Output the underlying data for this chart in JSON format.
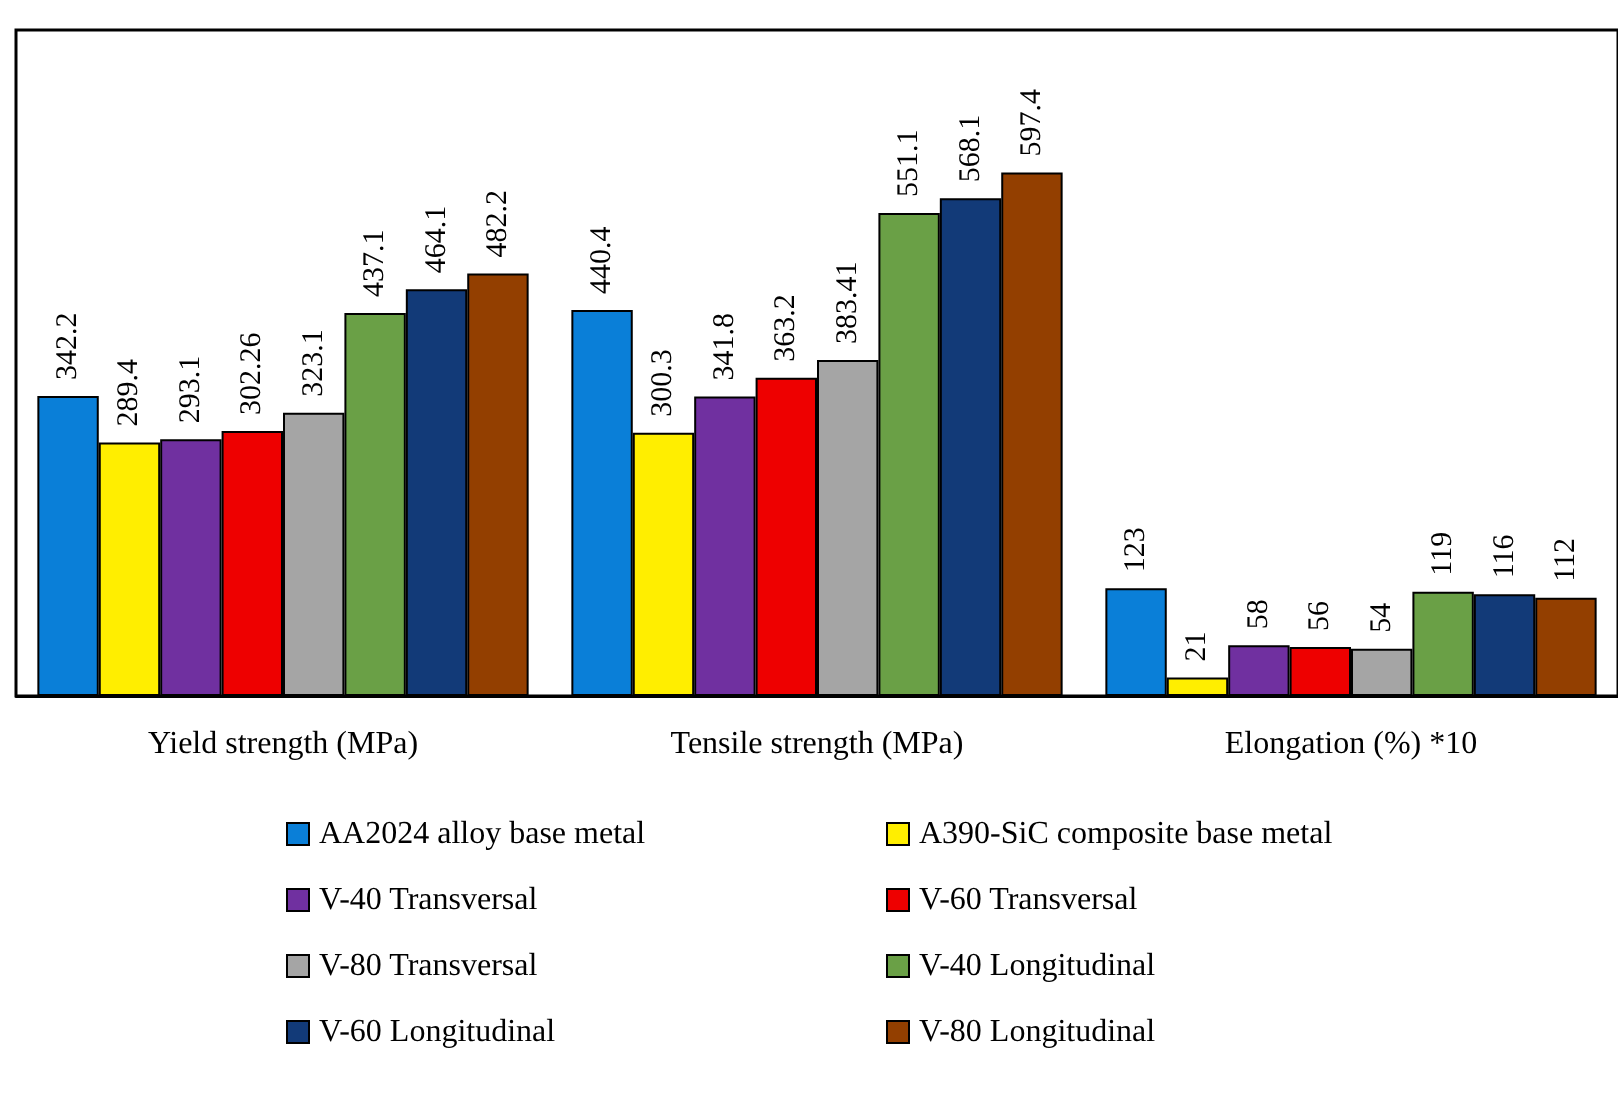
{
  "chart_data": {
    "type": "bar",
    "categories": [
      "Yield strength (MPa)",
      "Tensile strength (MPa)",
      "Elongation (%) *10"
    ],
    "series": [
      {
        "name": "AA2024 alloy base metal",
        "color": "#0a7fd8",
        "values": [
          342.2,
          440.4,
          123
        ]
      },
      {
        "name": "A390-SiC composite base metal",
        "color": "#ffee00",
        "values": [
          289.4,
          300.3,
          21
        ]
      },
      {
        "name": "V-40 Transversal",
        "color": "#7030a0",
        "values": [
          293.1,
          341.8,
          58
        ]
      },
      {
        "name": "V-60 Transversal",
        "color": "#ee0000",
        "values": [
          302.26,
          363.2,
          56
        ]
      },
      {
        "name": "V-80 Transversal",
        "color": "#a5a5a5",
        "values": [
          323.1,
          383.41,
          54
        ]
      },
      {
        "name": "V-40 Longitudinal",
        "color": "#6aa046",
        "values": [
          437.1,
          551.1,
          119
        ]
      },
      {
        "name": "V-60 Longitudinal",
        "color": "#123a78",
        "values": [
          464.1,
          568.1,
          116
        ]
      },
      {
        "name": "V-80 Longitudinal",
        "color": "#933f00",
        "values": [
          482.2,
          597.4,
          112
        ]
      }
    ],
    "ylim": [
      0,
      760
    ],
    "data_labels": true,
    "legend": "bottom"
  }
}
